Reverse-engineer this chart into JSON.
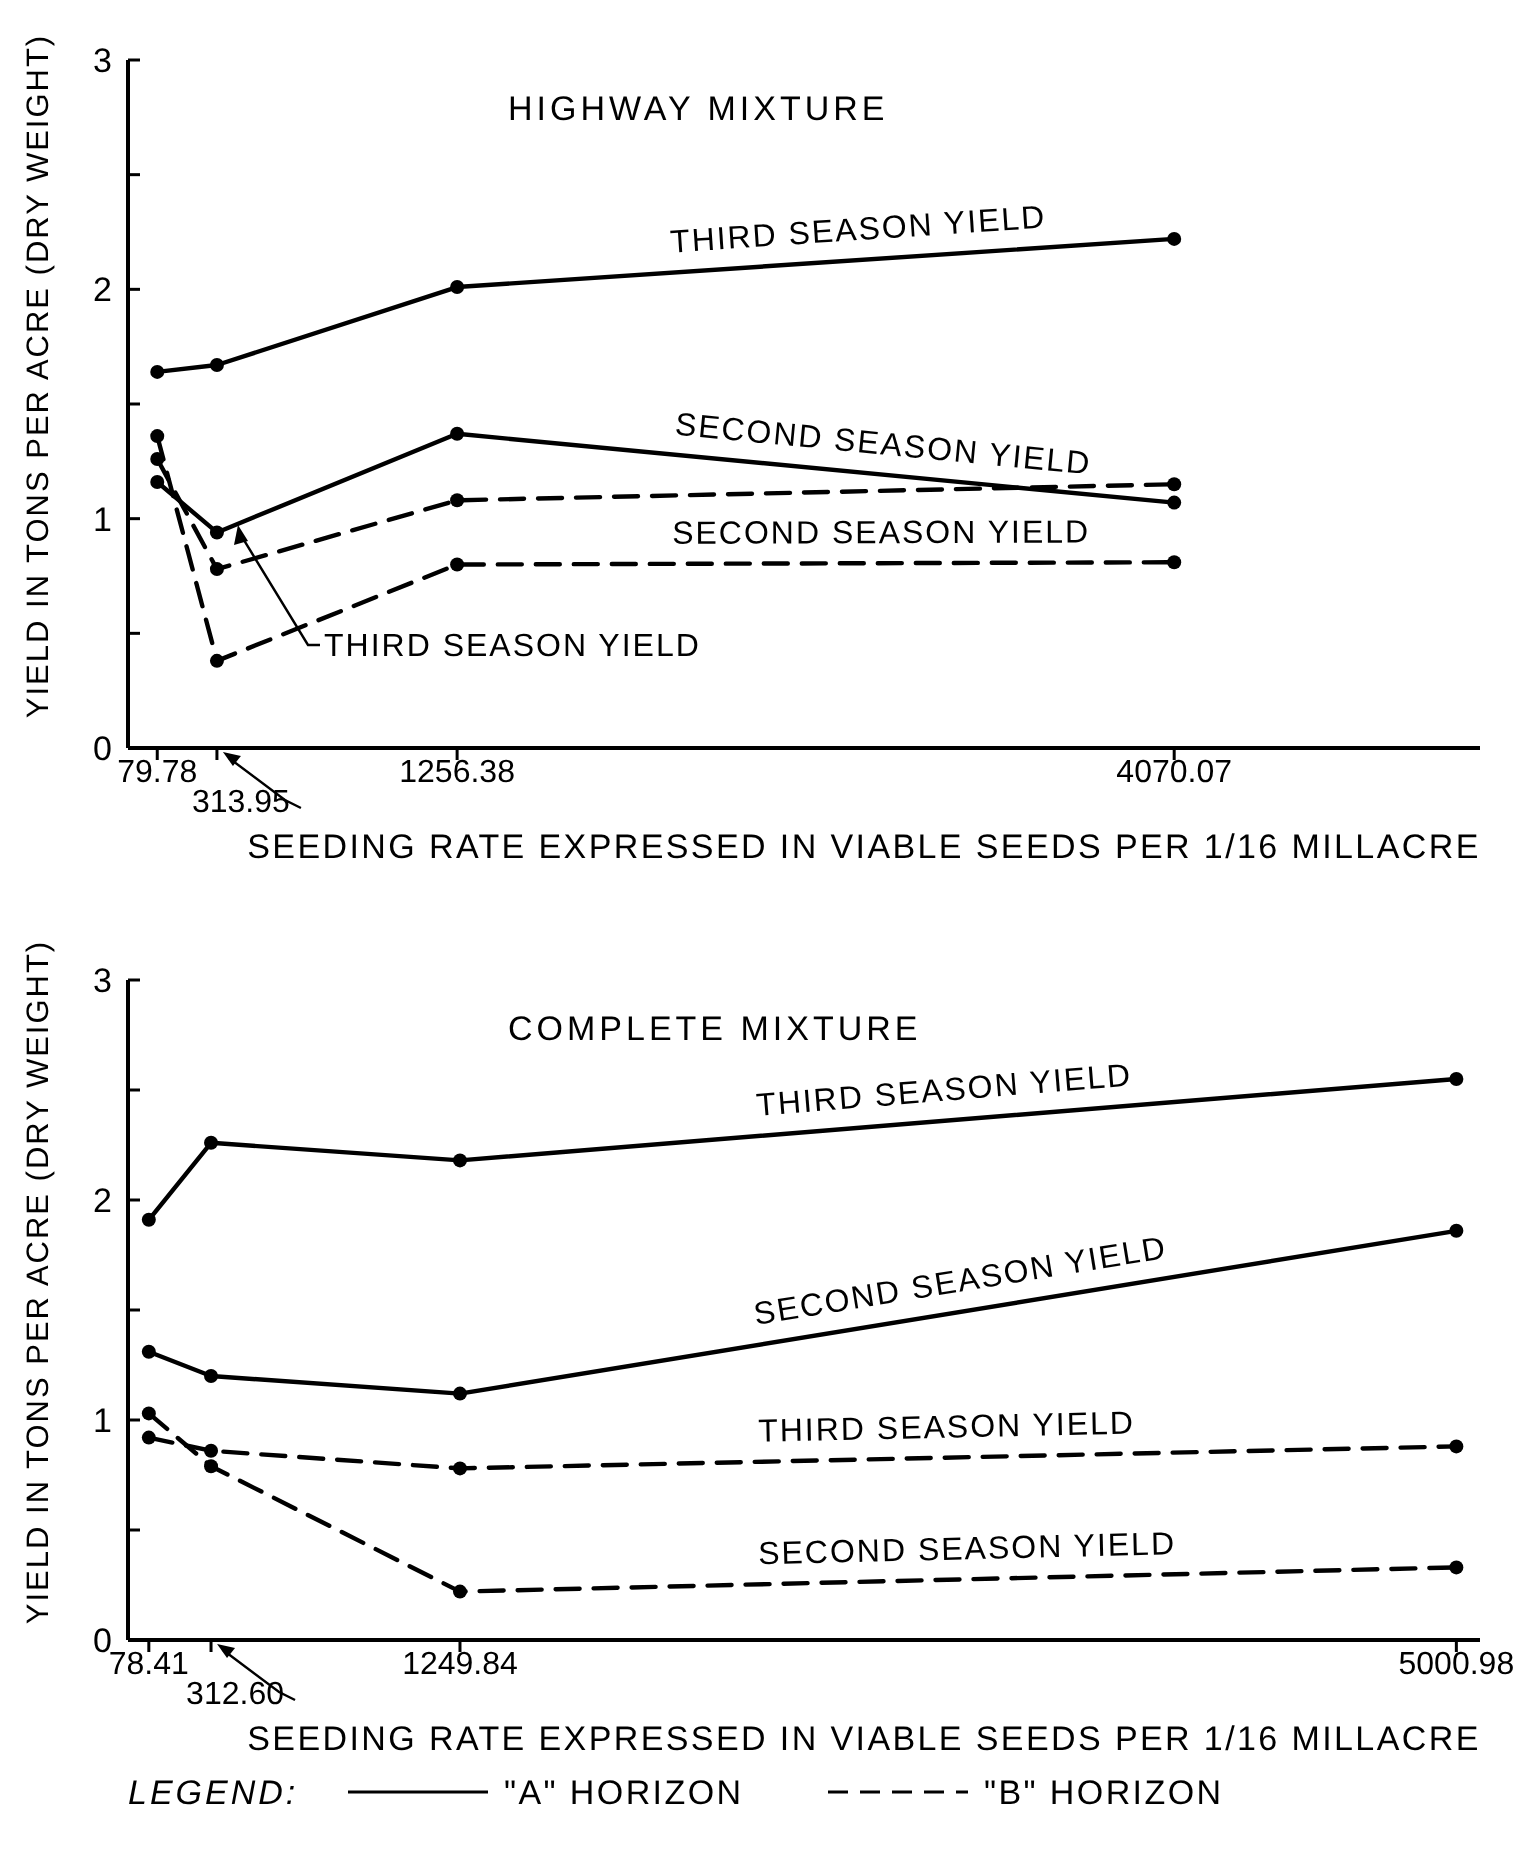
{
  "chart_data": [
    {
      "type": "line",
      "title": "HIGHWAY MIXTURE",
      "xlabel": "SEEDING RATE EXPRESSED IN VIABLE SEEDS PER 1/16 MILLACRE",
      "ylabel": "YIELD IN TONS PER ACRE (DRY WEIGHT)",
      "x": [
        79.78,
        313.95,
        1256.38,
        4070.07
      ],
      "xlim": [
        -35,
        5270
      ],
      "xticks": [
        79.78,
        {
          "value": 313.95,
          "label": null
        },
        1256.38,
        4070.07
      ],
      "ylim": [
        0,
        3
      ],
      "yticks": [
        0,
        {
          "value": 0.5,
          "label": null
        },
        1,
        {
          "value": 1.5,
          "label": null
        },
        2,
        {
          "value": 2.5,
          "label": null
        },
        3
      ],
      "grid": false,
      "marker": "circle",
      "series": [
        {
          "name": "THIRD SEASON YIELD",
          "color": "#000000",
          "line_style": "solid",
          "values": [
            1.64,
            1.67,
            2.01,
            2.22
          ]
        },
        {
          "name": "SECOND SEASON YIELD",
          "color": "#000000",
          "line_style": "solid",
          "values": [
            1.16,
            0.94,
            1.37,
            1.07
          ]
        },
        {
          "name": "THIRD SEASON YIELD",
          "color": "#000000",
          "line_style": "dashed",
          "values": [
            1.26,
            0.78,
            1.08,
            1.15
          ]
        },
        {
          "name": "SECOND SEASON YIELD",
          "color": "#000000",
          "line_style": "dashed",
          "values": [
            1.36,
            0.38,
            0.8,
            0.81
          ]
        }
      ],
      "annotations": [
        "313.95"
      ]
    },
    {
      "type": "line",
      "title": "COMPLETE MIXTURE",
      "xlabel": "SEEDING RATE EXPRESSED IN VIABLE SEEDS PER 1/16 MILLACRE",
      "ylabel": "YIELD IN TONS PER ACRE (DRY WEIGHT)",
      "x": [
        78.41,
        312.6,
        1249.84,
        5000.98
      ],
      "xlim": [
        0,
        5090
      ],
      "xticks": [
        78.41,
        {
          "value": 312.6,
          "label": null
        },
        1249.84,
        5000.98
      ],
      "ylim": [
        0,
        3
      ],
      "yticks": [
        0,
        {
          "value": 0.5,
          "label": null
        },
        1,
        {
          "value": 1.5,
          "label": null
        },
        2,
        {
          "value": 2.5,
          "label": null
        },
        3
      ],
      "grid": false,
      "marker": "circle",
      "series": [
        {
          "name": "THIRD SEASON YIELD",
          "color": "#000000",
          "line_style": "solid",
          "values": [
            1.91,
            2.26,
            2.18,
            2.55
          ]
        },
        {
          "name": "SECOND SEASON YIELD",
          "color": "#000000",
          "line_style": "solid",
          "values": [
            1.31,
            1.2,
            1.12,
            1.86
          ]
        },
        {
          "name": "THIRD SEASON YIELD",
          "color": "#000000",
          "line_style": "dashed",
          "values": [
            0.92,
            0.86,
            0.78,
            0.88
          ]
        },
        {
          "name": "SECOND SEASON YIELD",
          "color": "#000000",
          "line_style": "dashed",
          "values": [
            1.03,
            0.79,
            0.22,
            0.33
          ]
        }
      ],
      "annotations": [
        "312.60",
        "LEGEND:",
        "\"A\" HORIZON",
        "\"B\" HORIZON"
      ]
    }
  ]
}
